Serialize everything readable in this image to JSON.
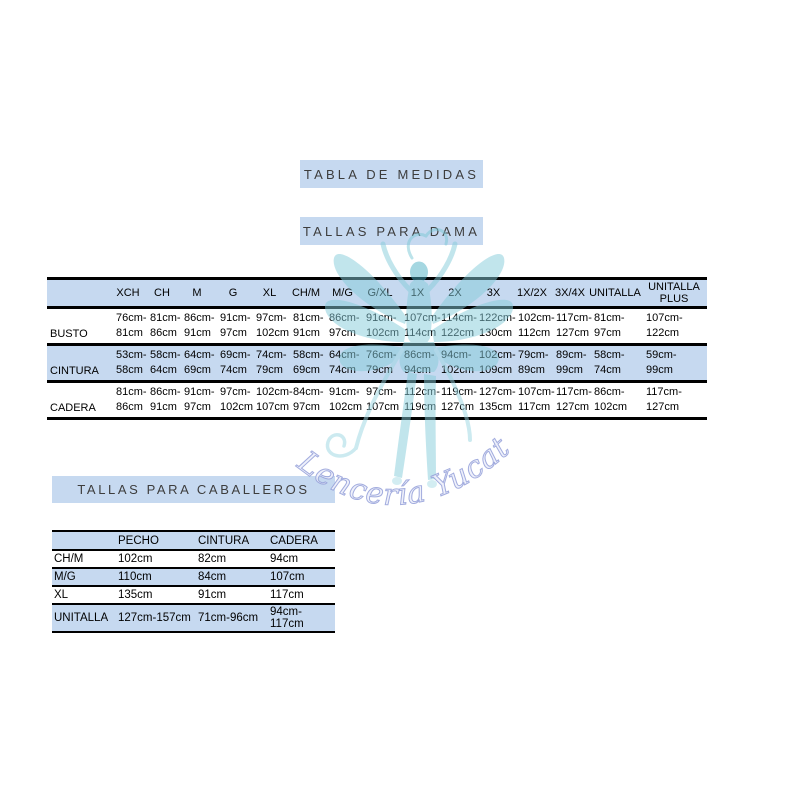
{
  "titles": {
    "main": "TABLA DE MEDIDAS",
    "dama": "TALLAS PARA DAMA",
    "caballeros": "TALLAS PARA CABALLEROS"
  },
  "watermark": {
    "text": "Lencería Yucatán",
    "figure": "winged-lady-silhouette",
    "figure_color": "#85ccda",
    "text_fill": "#eef0fb",
    "text_outline": "#99a4db"
  },
  "colors": {
    "band": "#c6d9f0",
    "border": "#000000",
    "title_text": "#3d3d3d"
  },
  "dama_table": {
    "columns": [
      "",
      "XCH",
      "CH",
      "M",
      "G",
      "XL",
      "CH/M",
      "M/G",
      "G/XL",
      "1X",
      "2X",
      "3X",
      "1X/2X",
      "3X/4X",
      "UNITALLA",
      "UNITALLA PLUS"
    ],
    "rows": [
      {
        "label": "BUSTO",
        "cells": [
          "76cm-\n81cm",
          "81cm-\n86cm",
          "86cm-\n91cm",
          "91cm-\n97cm",
          "97cm-\n102cm",
          "81cm-\n91cm",
          "86cm-\n97cm",
          "91cm-\n102cm",
          "107cm-\n114cm",
          "114cm-\n122cm",
          "122cm-\n130cm",
          "102cm-\n112cm",
          "117cm-\n127cm",
          "81cm-\n97cm",
          "107cm-\n122cm"
        ]
      },
      {
        "label": "CINTURA",
        "cells": [
          "53cm-\n58cm",
          "58cm-\n64cm",
          "64cm-\n69cm",
          "69cm-\n74cm",
          "74cm-\n79cm",
          "58cm-\n69cm",
          "64cm-\n74cm",
          "76cm-\n79cm",
          "86cm-\n94cm",
          "94cm-\n102cm",
          "102cm-\n109cm",
          "79cm-\n89cm",
          "89cm-\n99cm",
          "58cm-\n74cm",
          "59cm-\n99cm"
        ]
      },
      {
        "label": "CADERA",
        "cells": [
          "81cm-\n86cm",
          "86cm-\n91cm",
          "91cm-\n97cm",
          "97cm-\n102cm",
          "102cm-\n107cm",
          "84cm-\n97cm",
          "91cm-\n102cm",
          "97cm-\n107cm",
          "112cm-\n119cm",
          "119cm-\n127cm",
          "127cm-\n135cm",
          "107cm-\n117cm",
          "117cm-\n127cm",
          "86cm-\n102cm",
          "117cm-\n127cm"
        ]
      }
    ]
  },
  "caballeros_table": {
    "columns": [
      "",
      "PECHO",
      "CINTURA",
      "CADERA"
    ],
    "rows": [
      {
        "label": "CH/M",
        "cells": [
          "102cm",
          "82cm",
          "94cm"
        ]
      },
      {
        "label": "M/G",
        "cells": [
          "110cm",
          "84cm",
          "107cm"
        ]
      },
      {
        "label": "XL",
        "cells": [
          "135cm",
          "91cm",
          "117cm"
        ]
      },
      {
        "label": "UNITALLA",
        "cells": [
          "127cm-157cm",
          "71cm-96cm",
          "94cm-117cm"
        ]
      }
    ]
  }
}
